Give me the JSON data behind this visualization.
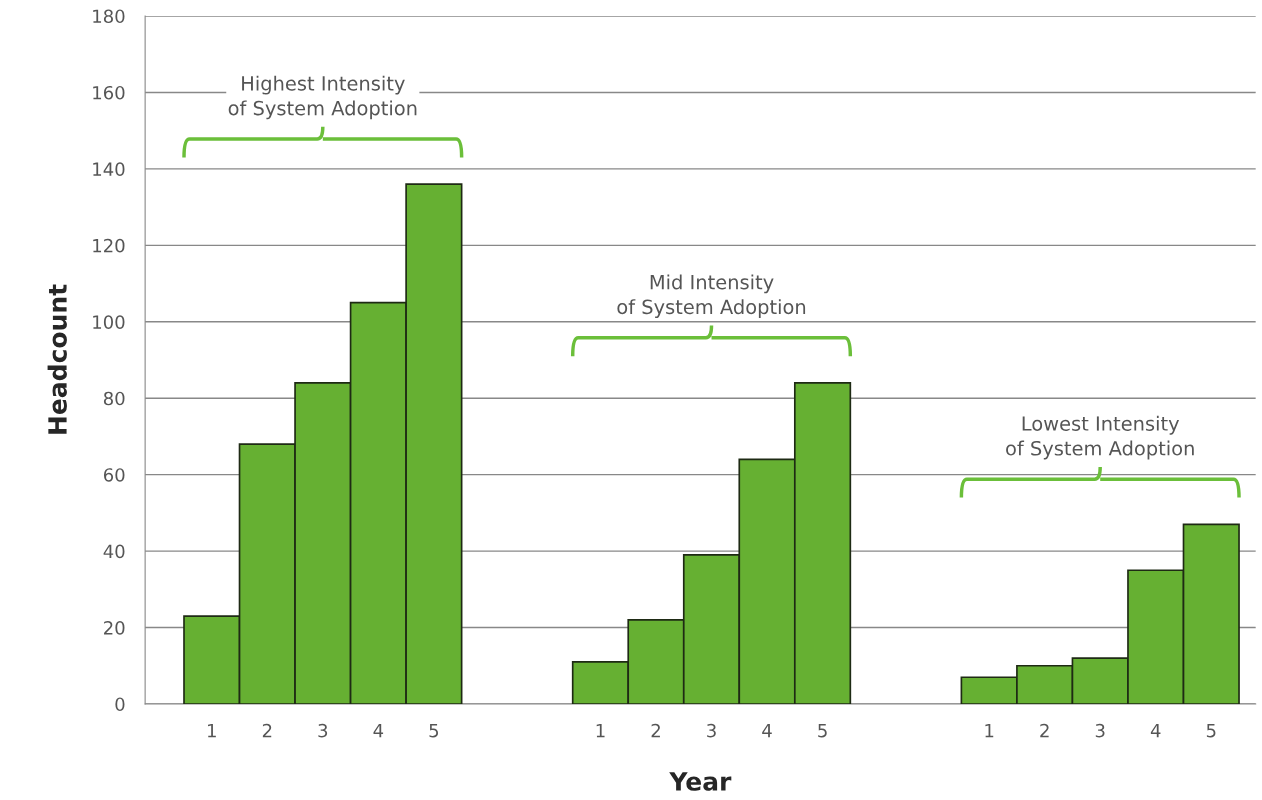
{
  "chart_data": {
    "type": "bar",
    "xlabel": "Year",
    "ylabel": "Headcount",
    "categories": [
      "1",
      "2",
      "3",
      "4",
      "5",
      null,
      null,
      "1",
      "2",
      "3",
      "4",
      "5",
      null,
      null,
      "1",
      "2",
      "3",
      "4",
      "5"
    ],
    "values": [
      23,
      68,
      84,
      105,
      136,
      null,
      null,
      11,
      22,
      39,
      64,
      84,
      null,
      null,
      7,
      10,
      12,
      35,
      47
    ],
    "color": "#66b032",
    "ylim": [
      0,
      180
    ],
    "yticks": [
      0,
      20,
      40,
      60,
      80,
      100,
      120,
      140,
      160,
      180
    ],
    "grid": "y",
    "legend": false,
    "annotations": [
      "Highest Intensity\nof System Adoption",
      "Mid Intensity\nof System Adoption",
      "Lowest Intensity\nof System Adoption"
    ]
  }
}
